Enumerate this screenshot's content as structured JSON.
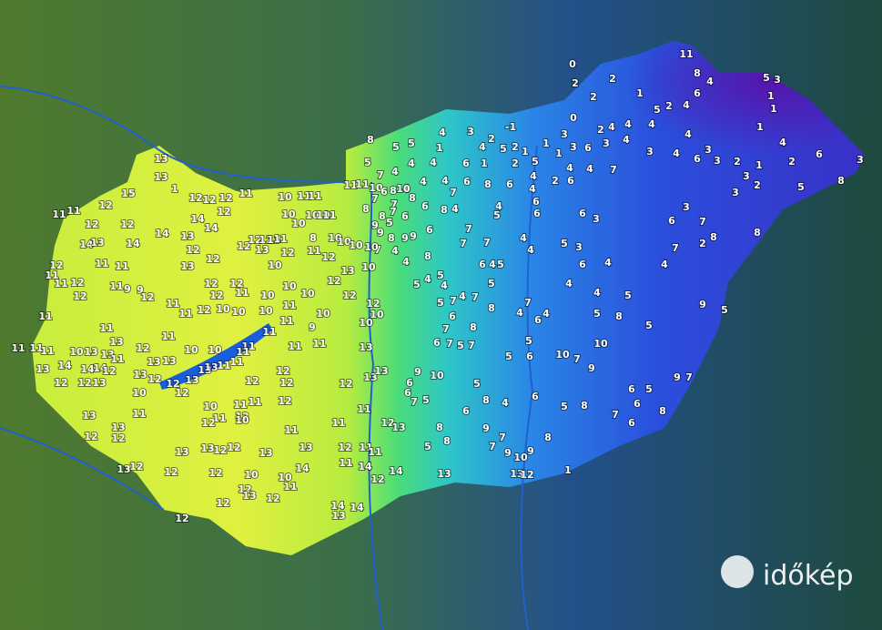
{
  "logo": "időkép",
  "stations": [
    0,
    11,
    8,
    4,
    5,
    3,
    2,
    2,
    2,
    1,
    5,
    6,
    4,
    1,
    1,
    2,
    0,
    -1,
    3,
    4,
    2,
    4,
    2,
    1,
    3,
    2,
    4,
    4,
    4,
    4,
    1,
    4,
    6,
    3,
    8,
    5,
    2,
    1,
    3,
    3,
    2,
    3,
    6,
    3,
    2,
    4,
    3,
    4,
    3,
    6,
    3,
    1,
    1,
    5,
    1,
    8,
    5,
    5,
    5,
    4,
    4,
    4,
    6,
    1,
    2,
    5,
    4,
    4,
    7,
    2,
    6,
    4,
    6,
    4,
    8,
    6,
    4,
    7,
    4,
    4,
    7,
    10,
    6,
    8,
    10,
    8,
    7,
    7,
    8,
    8,
    7,
    9,
    5,
    6,
    6,
    8,
    6,
    9,
    9,
    8,
    9,
    7,
    4,
    4,
    8,
    4,
    7,
    7,
    7,
    4,
    5,
    4,
    4,
    6,
    6,
    6,
    4,
    5,
    6,
    3,
    5,
    3,
    6,
    4,
    4,
    6,
    3,
    7,
    2,
    8,
    7,
    8,
    5,
    4,
    5,
    4,
    7,
    5,
    4,
    7,
    5,
    8,
    6,
    7,
    4,
    6,
    4,
    4,
    4,
    5,
    5,
    8,
    5,
    9,
    5,
    7,
    8,
    6,
    7,
    5,
    7,
    5,
    5,
    6,
    10,
    7,
    10,
    9,
    10,
    9,
    6,
    6,
    7,
    5,
    5,
    8,
    6,
    4,
    6,
    5,
    8,
    7,
    6,
    5,
    6,
    8,
    9,
    7,
    6,
    8,
    8,
    9,
    7,
    7,
    9,
    10,
    9,
    8,
    5,
    13,
    13,
    12,
    1,
    13,
    13,
    15,
    1,
    12,
    12,
    12,
    11,
    11,
    11,
    10,
    10,
    10,
    11,
    11,
    11,
    11,
    11,
    12,
    12,
    12,
    14,
    13,
    14,
    14,
    14,
    14,
    12,
    13,
    12,
    12,
    13,
    12,
    12,
    13,
    12,
    13,
    11,
    10,
    10,
    12,
    10,
    8,
    10,
    10,
    10,
    10,
    12,
    11,
    11,
    12,
    12,
    11,
    11,
    11,
    9,
    9,
    12,
    12,
    12,
    12,
    11,
    11,
    10,
    10,
    11,
    10,
    12,
    13,
    10,
    12,
    12,
    11,
    12,
    11,
    12,
    10,
    10,
    10,
    11,
    9,
    10,
    10,
    10,
    11,
    11,
    11,
    11,
    11,
    10,
    13,
    13,
    13,
    11,
    12,
    11,
    10,
    10,
    11,
    11,
    11,
    11,
    13,
    13,
    14,
    14,
    14,
    12,
    13,
    13,
    13,
    12,
    12,
    13,
    13,
    13,
    11,
    11,
    11,
    12,
    12,
    12,
    12,
    12,
    13,
    10,
    12,
    10,
    11,
    11,
    12,
    12,
    13,
    13,
    13,
    11,
    11,
    12,
    12,
    10,
    11,
    11,
    11,
    12,
    11,
    13,
    12,
    12,
    13,
    13,
    12,
    12,
    13,
    13,
    12,
    11,
    11,
    13,
    13,
    12,
    12,
    12,
    10,
    10,
    14,
    14,
    12,
    14,
    12,
    13,
    12,
    12,
    11,
    14,
    14,
    13,
    12
  ]
}
